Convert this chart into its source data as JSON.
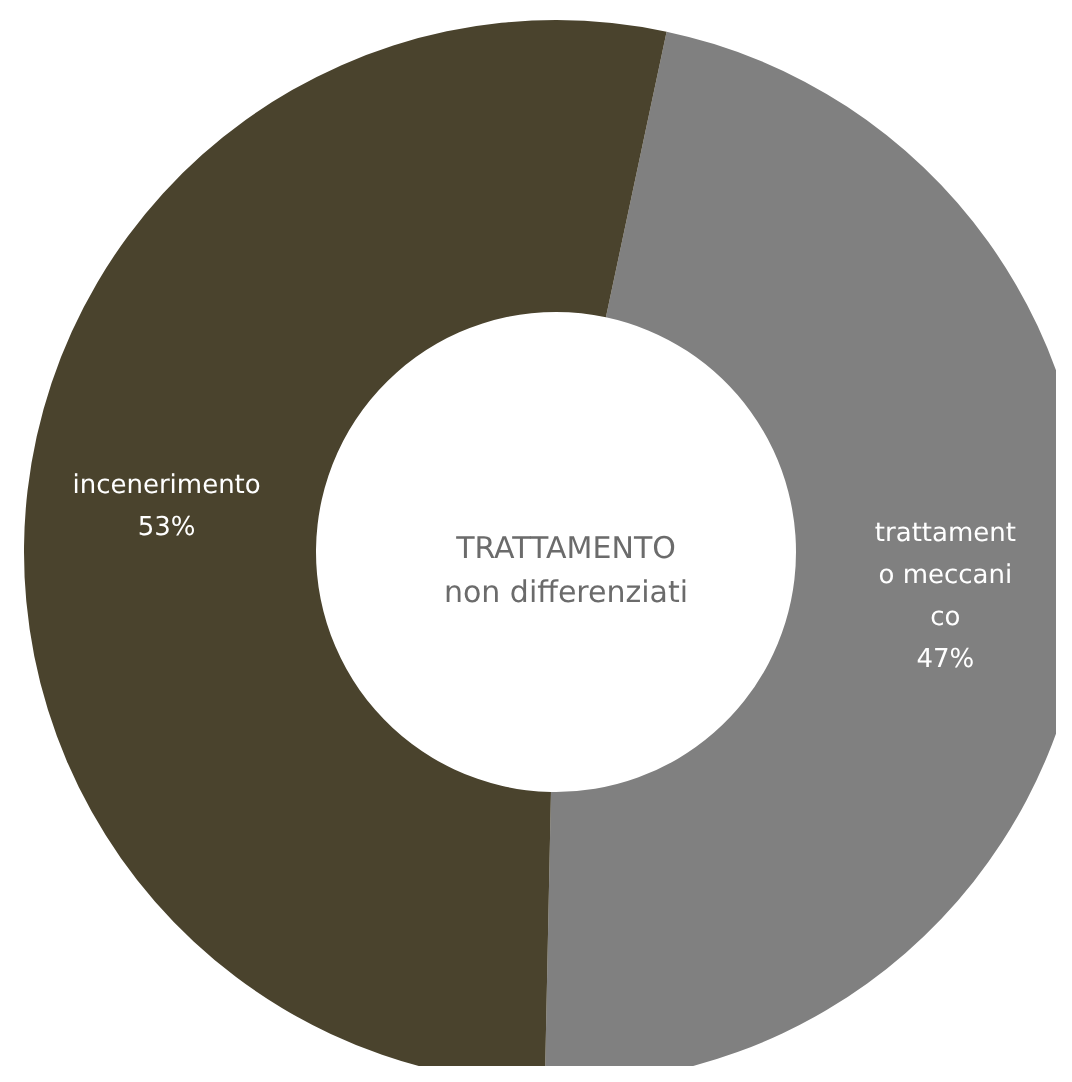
{
  "chart_data": {
    "type": "donut",
    "title": "TRATTAMENTO\nnon differenziati",
    "categories": [
      "trattamento meccanico",
      "incenerimento"
    ],
    "values": [
      47,
      53
    ],
    "value_labels": [
      "47%",
      "53%"
    ],
    "colors": [
      "#808080",
      "#4a432d"
    ],
    "legend": false
  }
}
